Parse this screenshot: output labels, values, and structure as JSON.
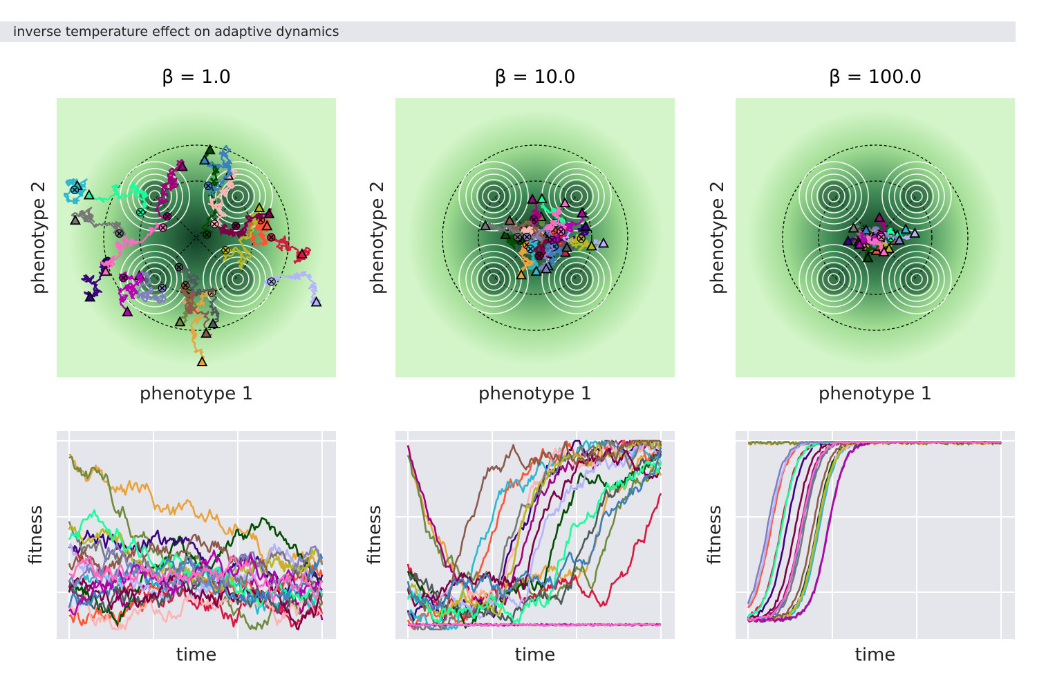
{
  "figure": {
    "suptitle": "inverse temperature effect on adaptive dynamics"
  },
  "colors": {
    "landscape_light": "#d4f5c9",
    "landscape_dark": "#0f3b24",
    "contour": "#ffffff",
    "panel_bg": "#e5e5ec",
    "grid": "#ffffff"
  },
  "series_colors": [
    "#e8a33d",
    "#6e8b3d",
    "#a0007c",
    "#ff5533",
    "#d7193f",
    "#004d00",
    "#3a0080",
    "#2bb8d0",
    "#ffb3b3",
    "#b3b3ff",
    "#777777",
    "#4c5a5a",
    "#b8b820",
    "#7a0045",
    "#8b5a4a",
    "#1aff9c",
    "#3b7fbf",
    "#8080c0",
    "#b300b3",
    "#ff6ac2"
  ],
  "chart_data": [
    {
      "type": "line",
      "panel": "phenotype",
      "title": "β = 1.0",
      "beta": 1.0,
      "xlabel": "phenotype 1",
      "ylabel": "phenotype 2",
      "landscape": "four fitness peaks around a central minimum, dashed circles marking peak rings",
      "markers": {
        "start": "triangle",
        "end": "x"
      },
      "n_trajectories": 20,
      "spread": 1.0
    },
    {
      "type": "line",
      "panel": "phenotype",
      "title": "β = 10.0",
      "beta": 10.0,
      "xlabel": "phenotype 1",
      "ylabel": "phenotype 2",
      "markers": {
        "start": "triangle",
        "end": "x"
      },
      "n_trajectories": 20,
      "spread": 0.6
    },
    {
      "type": "line",
      "panel": "phenotype",
      "title": "β = 100.0",
      "beta": 100.0,
      "xlabel": "phenotype 1",
      "ylabel": "phenotype 2",
      "markers": {
        "start": "triangle",
        "end": "x"
      },
      "n_trajectories": 20,
      "spread": 0.35
    },
    {
      "type": "line",
      "panel": "fitness",
      "beta": 1.0,
      "xlabel": "time",
      "ylabel": "fitness",
      "ylim": [
        0,
        1
      ],
      "trend": "fluctuating, mostly low with a few trajectories near the top",
      "n_trajectories": 20
    },
    {
      "type": "line",
      "panel": "fitness",
      "beta": 10.0,
      "xlabel": "time",
      "ylabel": "fitness",
      "ylim": [
        0,
        1
      ],
      "trend": "gradual climb; many trajectories reach the top within the run",
      "n_trajectories": 20
    },
    {
      "type": "line",
      "panel": "fitness",
      "beta": 100.0,
      "xlabel": "time",
      "ylabel": "fitness",
      "ylim": [
        0,
        1
      ],
      "trend": "rapid sigmoid rise to near 1 in the first third of the run, then flat",
      "n_trajectories": 20
    }
  ]
}
